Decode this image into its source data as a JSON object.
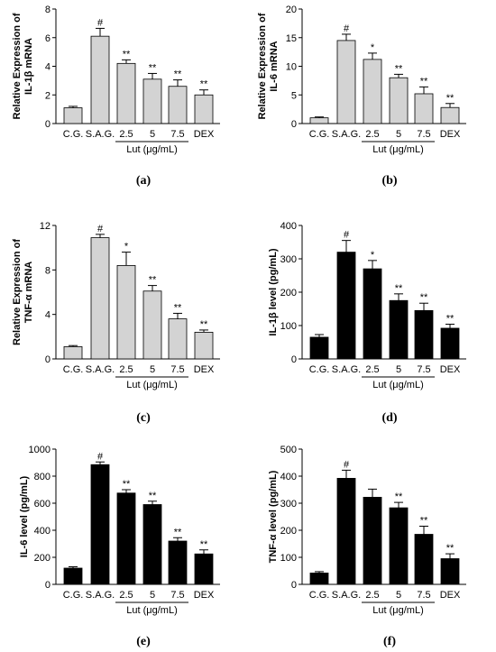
{
  "group_label": "Lut (μg/mL)",
  "chart_data": [
    {
      "type": "bar",
      "panel_label": "(a)",
      "ylabel_lines": [
        "Relative Expression of",
        "IL-1β mRNA"
      ],
      "categories": [
        "C.G.",
        "S.A.G.",
        "2.5",
        "5",
        "7.5",
        "DEX"
      ],
      "values": [
        1.1,
        6.1,
        4.2,
        3.1,
        2.6,
        2.0
      ],
      "errors": [
        0.1,
        0.55,
        0.25,
        0.4,
        0.45,
        0.35
      ],
      "annotations": [
        "",
        "#",
        "**",
        "**",
        "**",
        "**"
      ],
      "ylim": [
        0,
        8
      ],
      "yticks": [
        0,
        2,
        4,
        6,
        8
      ],
      "bar_color": "#d3d3d3"
    },
    {
      "type": "bar",
      "panel_label": "(b)",
      "ylabel_lines": [
        "Relative Expression of",
        "IL-6 mRNA"
      ],
      "categories": [
        "C.G.",
        "S.A.G.",
        "2.5",
        "5",
        "7.5",
        "DEX"
      ],
      "values": [
        1.0,
        14.5,
        11.2,
        8.0,
        5.2,
        2.8
      ],
      "errors": [
        0.15,
        1.1,
        1.1,
        0.6,
        1.2,
        0.7
      ],
      "annotations": [
        "",
        "#",
        "*",
        "**",
        "**",
        "**"
      ],
      "ylim": [
        0,
        20
      ],
      "yticks": [
        0,
        5,
        10,
        15,
        20
      ],
      "bar_color": "#d3d3d3"
    },
    {
      "type": "bar",
      "panel_label": "(c)",
      "ylabel_lines": [
        "Relative Expression of",
        "TNF-α mRNA"
      ],
      "categories": [
        "C.G.",
        "S.A.G.",
        "2.5",
        "5",
        "7.5",
        "DEX"
      ],
      "values": [
        1.1,
        10.9,
        8.4,
        6.1,
        3.6,
        2.4
      ],
      "errors": [
        0.1,
        0.3,
        1.2,
        0.5,
        0.5,
        0.2
      ],
      "annotations": [
        "",
        "#",
        "*",
        "**",
        "**",
        "**"
      ],
      "ylim": [
        0,
        12
      ],
      "yticks": [
        0,
        4,
        8,
        12
      ],
      "bar_color": "#d3d3d3"
    },
    {
      "type": "bar",
      "panel_label": "(d)",
      "ylabel_lines": [
        "IL-1β level (pg/mL)"
      ],
      "categories": [
        "C.G.",
        "S.A.G.",
        "2.5",
        "5",
        "7.5",
        "DEX"
      ],
      "values": [
        65,
        320,
        270,
        175,
        145,
        92
      ],
      "errors": [
        8,
        35,
        25,
        20,
        22,
        12
      ],
      "annotations": [
        "",
        "#",
        "*",
        "**",
        "**",
        "**"
      ],
      "ylim": [
        0,
        400
      ],
      "yticks": [
        0,
        100,
        200,
        300,
        400
      ],
      "bar_color": "#000000"
    },
    {
      "type": "bar",
      "panel_label": "(e)",
      "ylabel_lines": [
        "IL-6 level (pg/mL)"
      ],
      "categories": [
        "C.G.",
        "S.A.G.",
        "2.5",
        "5",
        "7.5",
        "DEX"
      ],
      "values": [
        120,
        885,
        675,
        590,
        320,
        225
      ],
      "errors": [
        10,
        20,
        25,
        25,
        25,
        30
      ],
      "annotations": [
        "",
        "#",
        "**",
        "**",
        "**",
        "**"
      ],
      "ylim": [
        0,
        1000
      ],
      "yticks": [
        0,
        200,
        400,
        600,
        800,
        1000
      ],
      "bar_color": "#000000"
    },
    {
      "type": "bar",
      "panel_label": "(f)",
      "ylabel_lines": [
        "TNF-α level (pg/mL)"
      ],
      "categories": [
        "C.G.",
        "S.A.G.",
        "2.5",
        "5",
        "7.5",
        "DEX"
      ],
      "values": [
        42,
        392,
        322,
        283,
        185,
        95
      ],
      "errors": [
        5,
        30,
        30,
        20,
        30,
        18
      ],
      "annotations": [
        "",
        "#",
        "",
        "**",
        "**",
        "**"
      ],
      "ylim": [
        0,
        500
      ],
      "yticks": [
        0,
        100,
        200,
        300,
        400,
        500
      ],
      "bar_color": "#000000"
    }
  ]
}
